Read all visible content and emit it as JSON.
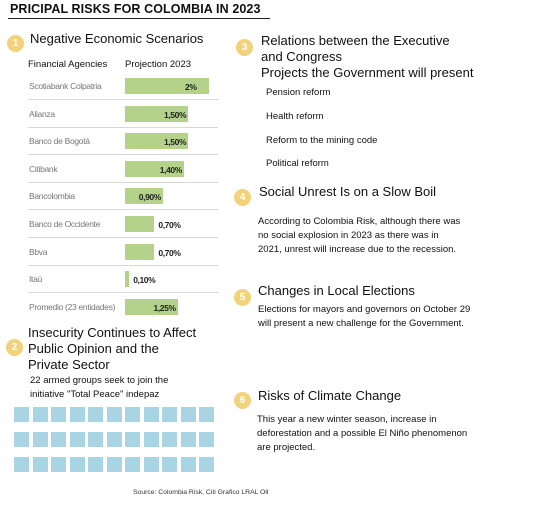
{
  "title": "PRICIPAL RISKS FOR COLOMBIA IN 2023",
  "section1": {
    "number": "1",
    "heading": "Negative Economic Scenarios",
    "col_agencies": "Financial Agencies",
    "col_projection": "Projection 2023"
  },
  "chart_data": {
    "type": "bar",
    "orientation": "horizontal",
    "categories": [
      "Scotiabank Colpatria",
      "Alianza",
      "Banco de Bogotá",
      "Citibank",
      "Bancolombia",
      "Banco de Occidente",
      "Bbva",
      "Itaú",
      "Promedio (23 entidades)"
    ],
    "values": [
      2.0,
      1.5,
      1.5,
      1.4,
      0.9,
      0.7,
      0.7,
      0.1,
      1.25
    ],
    "value_labels": [
      "2%",
      "1,50%",
      "1,50%",
      "1,40%",
      "0,90%",
      "0,70%",
      "0,70%",
      "0,10%",
      "1,25%"
    ],
    "xlim": [
      0,
      2.0
    ],
    "bar_color": "#b5d28a"
  },
  "section2": {
    "number": "2",
    "heading_lines": [
      "Insecurity Continues to Affect",
      "Public Opinion and the",
      "Private Sector"
    ],
    "text_lines": [
      "22 armed groups seek to join the",
      "initiative \"Total Peace\" indepaz"
    ],
    "groups_count": 22,
    "square_color": "#a9d4e3"
  },
  "section3": {
    "number": "3",
    "heading_lines": [
      "Relations between the Executive",
      "and Congress"
    ],
    "subheading": "Projects the Government will present",
    "items": [
      "Pension reform",
      "Health reform",
      "Reform to the mining code",
      "Political reform"
    ]
  },
  "section4": {
    "number": "4",
    "heading": "Social Unrest Is on a Slow Boil",
    "text_lines": [
      "According to Colombia Risk, although there was",
      "no social explosion in 2023 as there was in",
      "2021, unrest will increase due to the recession."
    ]
  },
  "section5": {
    "number": "5",
    "heading": "Changes in Local Elections",
    "text_lines": [
      "Elections for mayors and governors on October 29",
      "will present a new challenge for the Government."
    ]
  },
  "section6": {
    "number": "6",
    "heading": "Risks of Climate Change",
    "text_lines": [
      "This year a new winter season, increase in",
      "deforestation and a possible El Niño phenomenon",
      "are projected."
    ]
  },
  "source": "Source: Colombia Risk, Citi Grafico LRAL Oll",
  "colors": {
    "circle": "#f2d27a",
    "bar": "#b5d28a",
    "square": "#a9d4e3"
  }
}
